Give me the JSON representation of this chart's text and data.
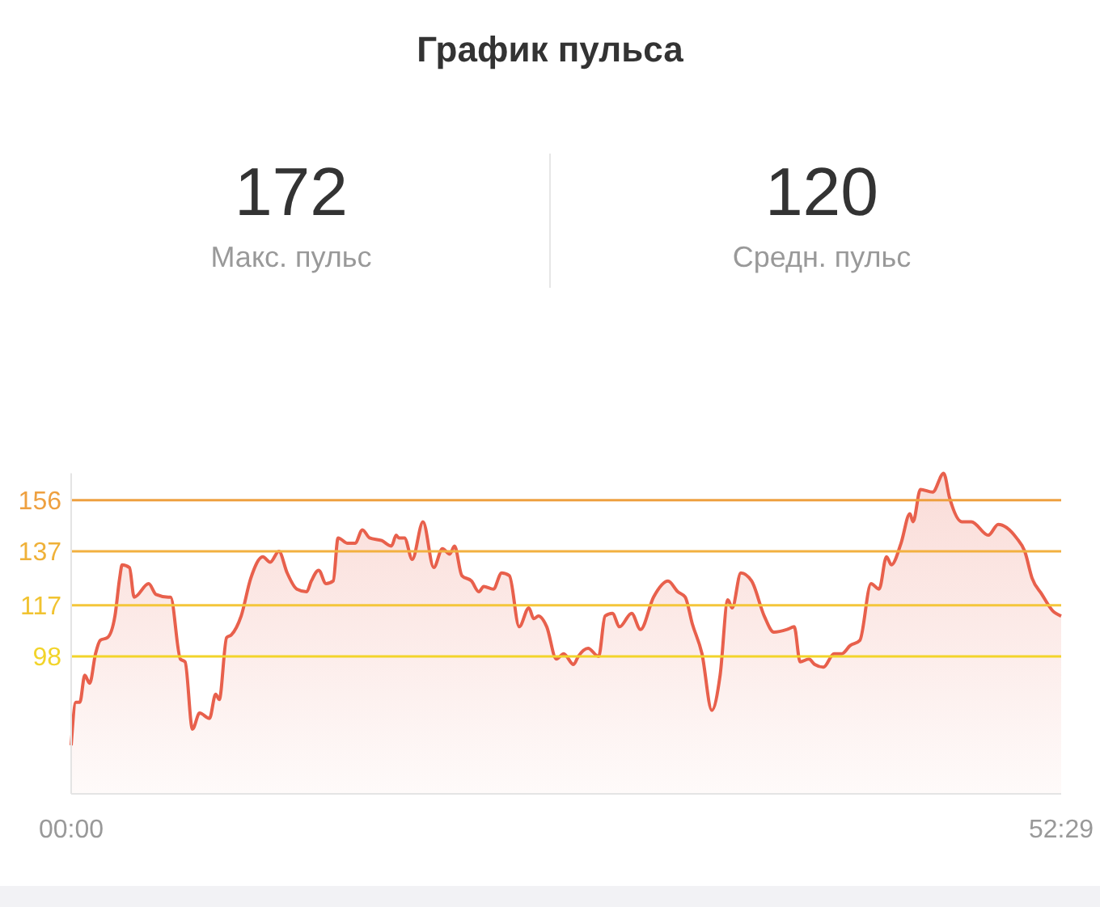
{
  "chart_data": {
    "type": "area",
    "title": "График пульса",
    "annotations": [
      "172",
      "Макс. пульс",
      "120",
      "Средн. пульс"
    ],
    "x": [
      0,
      0.25,
      0.46,
      0.72,
      0.98,
      1.29,
      1.54,
      1.93,
      2.32,
      2.57,
      2.7,
      3.09,
      3.34,
      4.11,
      4.5,
      5.15,
      5.27,
      5.79,
      6.04,
      6.43,
      6.81,
      7.33,
      7.66,
      7.85,
      8.24,
      8.49,
      9.01,
      9.52,
      10.16,
      10.55,
      11.01,
      11.45,
      11.96,
      12.48,
      12.73,
      13.12,
      13.51,
      13.89,
      14.15,
      14.66,
      15.05,
      15.44,
      15.82,
      16.46,
      16.98,
      17.23,
      17.37,
      17.67,
      18.08,
      18.65,
      19.22,
      19.68,
      20.07,
      20.32,
      20.71,
      21.22,
      21.61,
      21.87,
      22.38,
      22.82,
      23.23,
      23.75,
      24.26,
      24.52,
      24.77,
      25.21,
      25.72,
      26.11,
      26.63,
      26.88,
      27.4,
      27.96,
      28.3,
      28.69,
      29.07,
      29.71,
      30.18,
      30.87,
      31.64,
      32.16,
      32.55,
      32.93,
      33.44,
      33.96,
      34.4,
      34.81,
      35.04,
      35.5,
      36.07,
      36.74,
      37.25,
      37.95,
      38.33,
      38.64,
      39.11,
      39.42,
      39.88,
      40.44,
      40.85,
      41.29,
      41.81,
      42.4,
      42.83,
      43.22,
      43.48,
      43.99,
      44.46,
      44.63,
      45.02,
      45.67,
      46.25,
      46.56,
      47.21,
      47.72,
      48.62,
      49.14,
      50.11,
      50.55,
      50.94,
      51.46,
      52.02,
      52.48
    ],
    "series": [
      {
        "color": "#e8604c",
        "values": [
          65,
          81,
          81,
          91,
          88,
          99,
          104,
          105,
          113,
          127,
          132,
          131,
          120,
          125,
          121,
          120,
          120,
          97,
          96,
          71,
          77,
          75,
          84,
          82,
          105,
          106,
          113,
          127,
          135,
          133,
          137,
          129,
          123,
          122,
          126,
          130,
          125,
          126,
          142,
          140,
          140,
          145,
          142,
          141,
          139,
          143,
          142,
          142,
          134,
          148,
          131,
          138,
          136,
          139,
          128,
          126,
          122,
          124,
          123,
          129,
          128,
          109,
          116,
          112,
          113,
          109,
          97,
          99,
          95,
          98,
          101,
          98,
          113,
          114,
          109,
          114,
          108,
          120,
          126,
          122,
          120,
          110,
          99,
          78,
          91,
          119,
          116,
          129,
          126,
          113,
          107,
          108,
          109,
          96,
          97,
          95,
          94,
          99,
          99,
          102,
          104,
          125,
          123,
          135,
          132,
          140,
          151,
          148,
          160,
          159,
          166,
          157,
          148,
          148,
          143,
          147,
          142,
          137,
          127,
          121,
          115,
          113
        ]
      }
    ],
    "xlim": [
      0,
      52.48
    ],
    "xticks": [
      {
        "value": 0,
        "label": "00:00"
      },
      {
        "value": 52.48,
        "label": "52:29"
      }
    ],
    "ylim": [
      47,
      166
    ],
    "yticks": [
      98,
      117,
      137,
      156
    ],
    "ref_lines": [
      {
        "axis": "y",
        "value": 156,
        "color": "#eea040"
      },
      {
        "axis": "y",
        "value": 137,
        "color": "#f2b040"
      },
      {
        "axis": "y",
        "value": 117,
        "color": "#f4c63a"
      },
      {
        "axis": "y",
        "value": 98,
        "color": "#f2d42a"
      }
    ]
  }
}
